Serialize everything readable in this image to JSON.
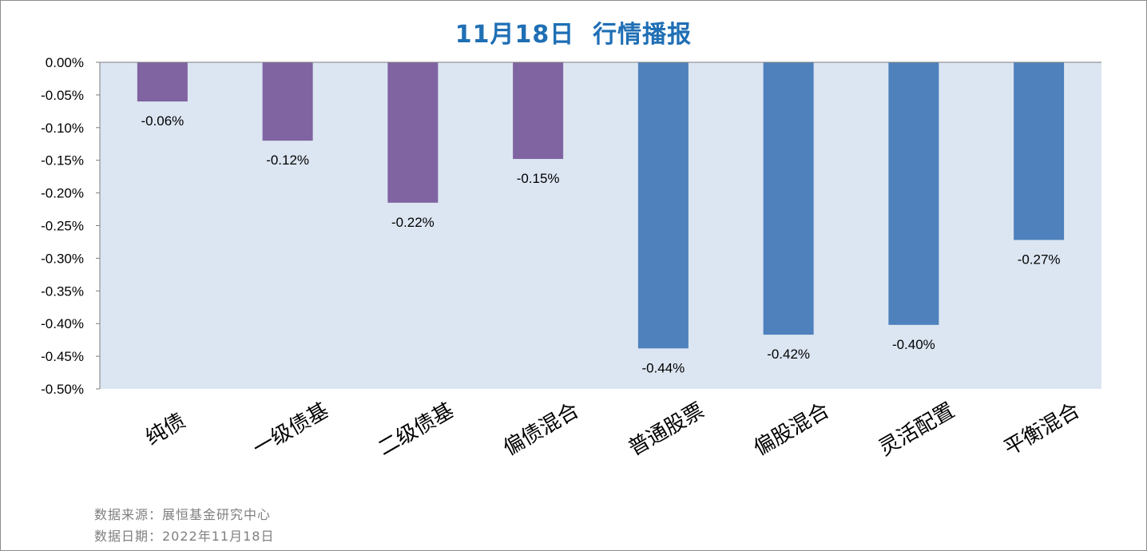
{
  "chart_data": {
    "type": "bar",
    "title": "11月18日  行情播报",
    "categories": [
      "纯债",
      "一级债基",
      "二级债基",
      "偏债混合",
      "普通股票",
      "偏股混合",
      "灵活配置",
      "平衡混合"
    ],
    "values": [
      -0.06,
      -0.12,
      -0.215,
      -0.148,
      -0.438,
      -0.417,
      -0.402,
      -0.272
    ],
    "value_labels": [
      "-0.06%",
      "-0.12%",
      "-0.22%",
      "-0.15%",
      "-0.44%",
      "-0.42%",
      "-0.40%",
      "-0.27%"
    ],
    "bar_colors": [
      "#8064a2",
      "#8064a2",
      "#8064a2",
      "#8064a2",
      "#4f81bd",
      "#4f81bd",
      "#4f81bd",
      "#4f81bd"
    ],
    "plot_background": "#dce6f2",
    "ylim": [
      -0.5,
      0
    ],
    "yticks": [
      0,
      -0.05,
      -0.1,
      -0.15,
      -0.2,
      -0.25,
      -0.3,
      -0.35,
      -0.4,
      -0.45,
      -0.5
    ],
    "ytick_labels": [
      "0.00%",
      "-0.05%",
      "-0.10%",
      "-0.15%",
      "-0.20%",
      "-0.25%",
      "-0.30%",
      "-0.35%",
      "-0.40%",
      "-0.45%",
      "-0.50%"
    ],
    "xlabel": "",
    "ylabel": "",
    "grid": false,
    "legend": "none"
  },
  "footer": {
    "source": "数据来源：展恒基金研究中心",
    "date": "数据日期：2022年11月18日"
  }
}
